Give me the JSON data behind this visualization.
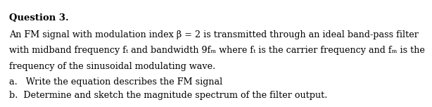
{
  "title": "Question 3.",
  "line1": "An FM signal with modulation index β = 2 is transmitted through an ideal band-pass filter",
  "line2": "with midband frequency fₜ and bandwidth 9fₘ where fₜ is the carrier frequency and fₘ is the",
  "line3": "frequency of the sinusoidal modulating wave.",
  "item_a": "a.   Write the equation describes the FM signal",
  "item_b": "b.  Determine and sketch the magnitude spectrum of the filter output.",
  "bg_color": "#ffffff",
  "text_color": "#000000",
  "font_size": 9.2,
  "title_font_size": 9.5
}
